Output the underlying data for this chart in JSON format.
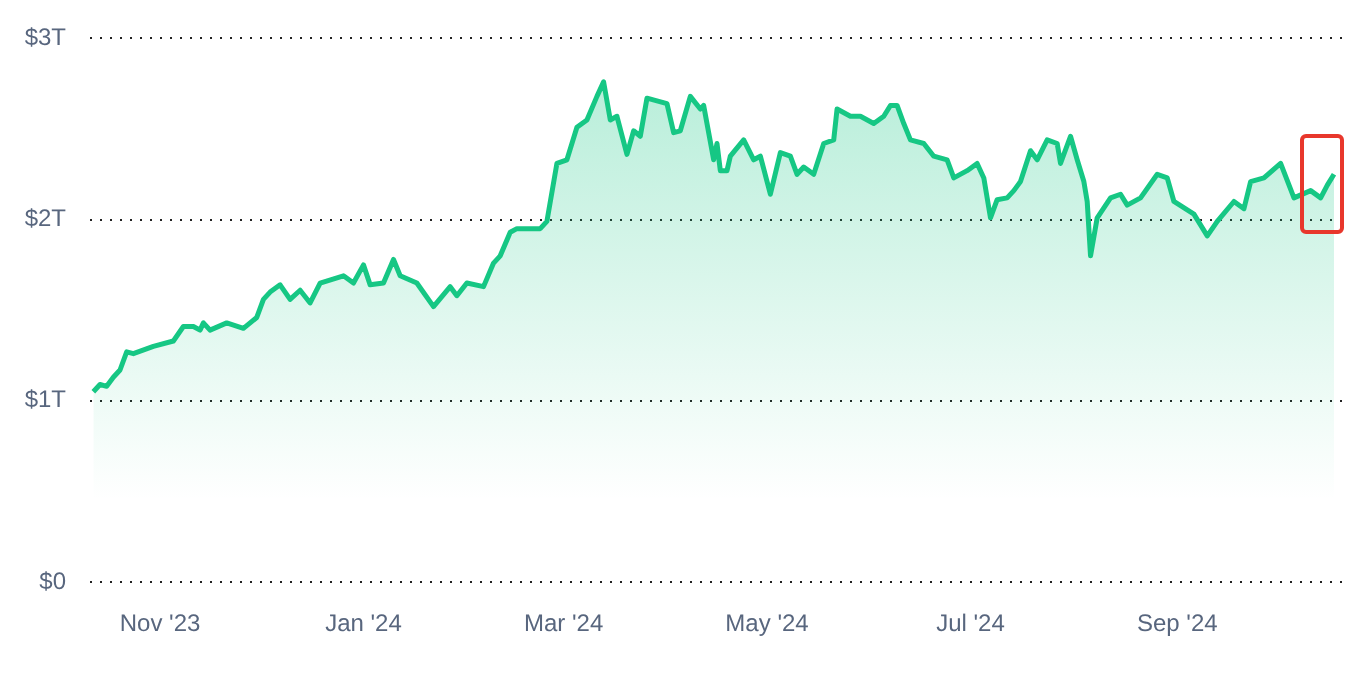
{
  "chart_data": {
    "type": "area",
    "color": "#16c784",
    "grid": "y",
    "line_style": "solid",
    "marker": "none",
    "x": [
      "2023-10-12",
      "2023-10-14",
      "2023-10-16",
      "2023-10-18",
      "2023-10-20",
      "2023-10-22",
      "2023-10-24",
      "2023-10-30",
      "2023-11-05",
      "2023-11-08",
      "2023-11-11",
      "2023-11-13",
      "2023-11-14",
      "2023-11-16",
      "2023-11-21",
      "2023-11-26",
      "2023-11-30",
      "2023-12-02",
      "2023-12-04",
      "2023-12-07",
      "2023-12-10",
      "2023-12-13",
      "2023-12-16",
      "2023-12-19",
      "2023-12-26",
      "2023-12-29",
      "2024-01-01",
      "2024-01-03",
      "2024-01-07",
      "2024-01-10",
      "2024-01-12",
      "2024-01-17",
      "2024-01-22",
      "2024-01-27",
      "2024-01-29",
      "2024-02-01",
      "2024-02-06",
      "2024-02-09",
      "2024-02-11",
      "2024-02-14",
      "2024-02-16",
      "2024-02-19",
      "2024-02-23",
      "2024-02-25",
      "2024-02-28",
      "2024-03-02",
      "2024-03-05",
      "2024-03-08",
      "2024-03-11",
      "2024-03-13",
      "2024-03-15",
      "2024-03-17",
      "2024-03-20",
      "2024-03-22",
      "2024-03-24",
      "2024-03-26",
      "2024-04-01",
      "2024-04-03",
      "2024-04-05",
      "2024-04-08",
      "2024-04-11",
      "2024-04-12",
      "2024-04-15",
      "2024-04-16",
      "2024-04-17",
      "2024-04-19",
      "2024-04-20",
      "2024-04-24",
      "2024-04-27",
      "2024-04-29",
      "2024-05-02",
      "2024-05-05",
      "2024-05-08",
      "2024-05-10",
      "2024-05-12",
      "2024-05-15",
      "2024-05-18",
      "2024-05-21",
      "2024-05-22",
      "2024-05-26",
      "2024-05-29",
      "2024-06-02",
      "2024-06-05",
      "2024-06-07",
      "2024-06-09",
      "2024-06-11",
      "2024-06-13",
      "2024-06-17",
      "2024-06-20",
      "2024-06-24",
      "2024-06-26",
      "2024-06-30",
      "2024-07-03",
      "2024-07-05",
      "2024-07-07",
      "2024-07-09",
      "2024-07-12",
      "2024-07-14",
      "2024-07-16",
      "2024-07-19",
      "2024-07-21",
      "2024-07-24",
      "2024-07-27",
      "2024-07-28",
      "2024-07-31",
      "2024-08-02",
      "2024-08-04",
      "2024-08-05",
      "2024-08-06",
      "2024-08-08",
      "2024-08-12",
      "2024-08-15",
      "2024-08-17",
      "2024-08-21",
      "2024-08-26",
      "2024-08-29",
      "2024-08-31",
      "2024-09-06",
      "2024-09-10",
      "2024-09-13",
      "2024-09-18",
      "2024-09-21",
      "2024-09-23",
      "2024-09-27",
      "2024-10-02",
      "2024-10-06",
      "2024-10-11",
      "2024-10-14",
      "2024-10-16",
      "2024-10-18"
    ],
    "values": [
      1.05,
      1.09,
      1.08,
      1.13,
      1.17,
      1.27,
      1.26,
      1.3,
      1.33,
      1.41,
      1.41,
      1.39,
      1.43,
      1.39,
      1.43,
      1.4,
      1.46,
      1.56,
      1.6,
      1.64,
      1.56,
      1.61,
      1.54,
      1.65,
      1.69,
      1.65,
      1.75,
      1.64,
      1.65,
      1.78,
      1.69,
      1.65,
      1.52,
      1.63,
      1.58,
      1.65,
      1.63,
      1.76,
      1.8,
      1.93,
      1.95,
      1.95,
      1.95,
      1.99,
      2.31,
      2.33,
      2.51,
      2.55,
      2.68,
      2.76,
      2.55,
      2.57,
      2.36,
      2.49,
      2.46,
      2.67,
      2.64,
      2.48,
      2.49,
      2.68,
      2.61,
      2.63,
      2.33,
      2.42,
      2.27,
      2.27,
      2.35,
      2.44,
      2.33,
      2.35,
      2.14,
      2.37,
      2.35,
      2.25,
      2.29,
      2.25,
      2.42,
      2.44,
      2.61,
      2.57,
      2.57,
      2.53,
      2.57,
      2.63,
      2.63,
      2.53,
      2.44,
      2.42,
      2.35,
      2.33,
      2.23,
      2.27,
      2.31,
      2.23,
      2.01,
      2.11,
      2.12,
      2.16,
      2.21,
      2.38,
      2.33,
      2.44,
      2.42,
      2.31,
      2.46,
      2.33,
      2.21,
      2.1,
      1.8,
      2.01,
      2.12,
      2.14,
      2.08,
      2.12,
      2.25,
      2.23,
      2.1,
      2.03,
      1.91,
      1.99,
      2.1,
      2.06,
      2.21,
      2.23,
      2.31,
      2.12,
      2.16,
      2.12,
      2.19,
      2.25
    ],
    "xlim": [
      "2023-10-11",
      "2024-10-21"
    ],
    "xticks": [
      {
        "value": "2023-11-01",
        "label": "Nov '23"
      },
      {
        "value": "2024-01-01",
        "label": "Jan '24"
      },
      {
        "value": "2024-03-01",
        "label": "Mar '24"
      },
      {
        "value": "2024-05-01",
        "label": "May '24"
      },
      {
        "value": "2024-07-01",
        "label": "Jul '24"
      },
      {
        "value": "2024-09-01",
        "label": "Sep '24"
      }
    ],
    "ylim": [
      0,
      3
    ],
    "yticks": [
      {
        "value": 0,
        "label": "$0"
      },
      {
        "value": 1,
        "label": "$1T"
      },
      {
        "value": 2,
        "label": "$2T"
      },
      {
        "value": 3,
        "label": "$3T"
      }
    ]
  }
}
